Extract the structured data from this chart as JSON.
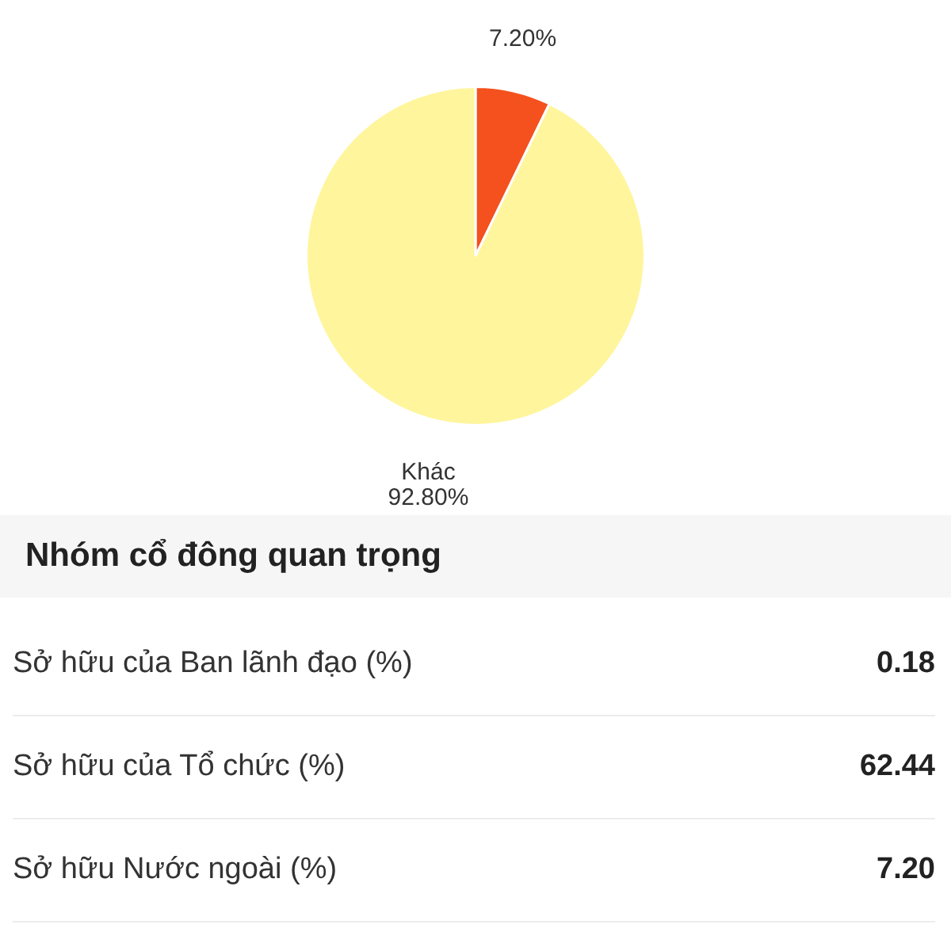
{
  "chart_data": [
    {
      "type": "pie",
      "categories": [
        null,
        "Khác"
      ],
      "values": [
        7.2,
        92.8
      ],
      "colors": [
        "#f4511e",
        "#fff59d"
      ],
      "value_labels": [
        "7.20%",
        "92.80%"
      ]
    },
    {
      "type": "other",
      "title": "Nhóm cổ đông quan trọng",
      "categories": [
        "Sở hữu của Ban lãnh đạo (%)",
        "Sở hữu của Tổ chức (%)",
        "Sở hữu Nước ngoài (%)"
      ],
      "value_labels": [
        "0.18",
        "62.44",
        "7.20"
      ]
    }
  ]
}
